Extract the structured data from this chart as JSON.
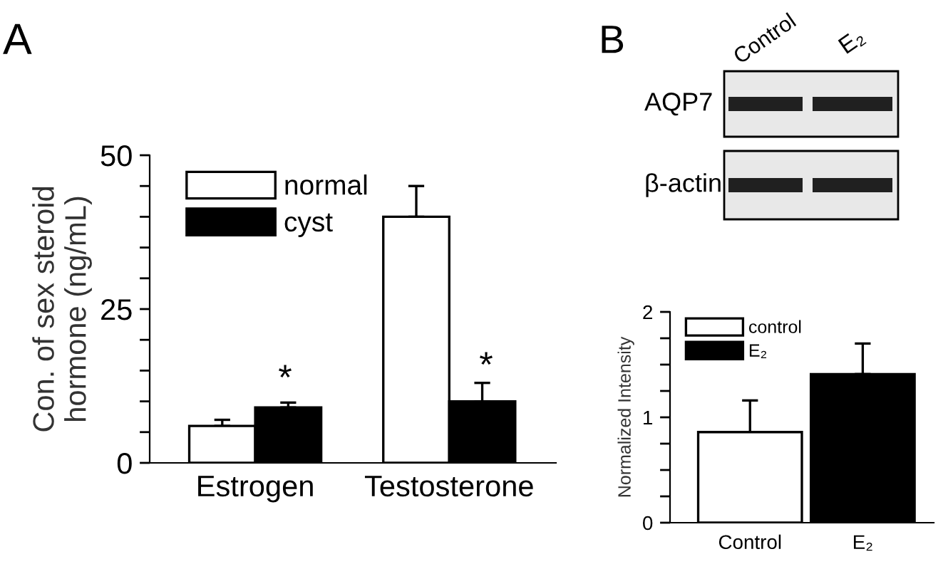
{
  "chart_data": [
    {
      "type": "bar",
      "ylabel": "Con. of sex steroid\nhormone (ng/mL)",
      "categories": [
        "Estrogen",
        "Testosterone"
      ],
      "series": [
        {
          "name": "normal",
          "color": "#ffffff",
          "values": [
            6.0,
            40
          ],
          "errors": [
            [
              6.0,
              7.0
            ],
            [
              40,
              45
            ]
          ]
        },
        {
          "name": "cyst",
          "color": "#000000",
          "values": [
            9,
            10
          ],
          "errors": [
            [
              9,
              9.8
            ],
            [
              10,
              13
            ]
          ]
        }
      ],
      "ylim": [
        0,
        50
      ],
      "yticks": [
        0,
        {
          "value": 5,
          "label": null
        },
        {
          "value": 10,
          "label": null
        },
        {
          "value": 15,
          "label": null
        },
        {
          "value": 20,
          "label": null
        },
        25,
        {
          "value": 30,
          "label": null
        },
        {
          "value": 35,
          "label": null
        },
        {
          "value": 40,
          "label": null
        },
        {
          "value": 45,
          "label": null
        },
        50
      ],
      "legend": "top left",
      "grid": false,
      "annotations": [
        "A",
        "*",
        "*"
      ]
    },
    {
      "type": "bar",
      "stacked": true,
      "ylabel": "Normalized Intensity",
      "categories": [
        "Control",
        "E₂"
      ],
      "series": [
        {
          "name": "control",
          "color": "#ffffff",
          "values": [
            0.86,
            null
          ],
          "errors": [
            [
              0.86,
              1.16
            ],
            null
          ]
        },
        {
          "name": "E₂",
          "color": "#000000",
          "values": [
            null,
            1.41
          ],
          "errors": [
            null,
            [
              1.41,
              1.7
            ]
          ]
        }
      ],
      "ylim": [
        0,
        2
      ],
      "yticks": [
        0,
        {
          "value": 0.25,
          "label": null
        },
        {
          "value": 0.5,
          "label": null
        },
        {
          "value": 0.75,
          "label": null
        },
        1,
        {
          "value": 1.25,
          "label": null
        },
        {
          "value": 1.5,
          "label": null
        },
        {
          "value": 1.75,
          "label": null
        },
        2
      ],
      "legend": "top left",
      "grid": false,
      "annotations": [
        "B",
        "Control",
        "E₂",
        "AQP7",
        "β-actin"
      ]
    }
  ]
}
